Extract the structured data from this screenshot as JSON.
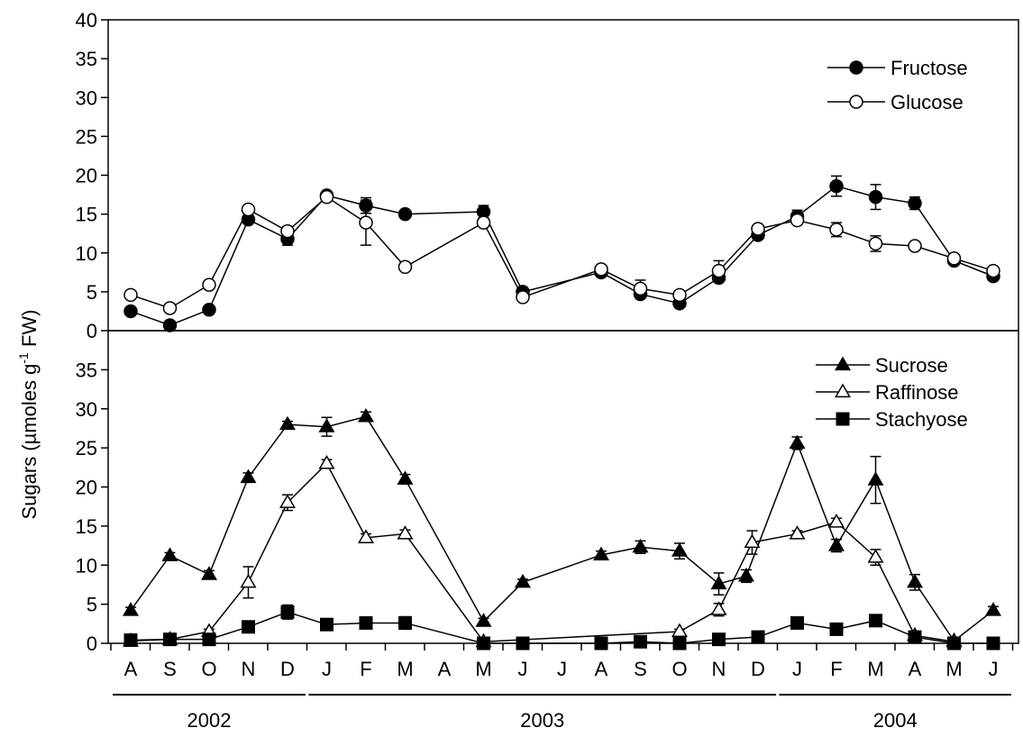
{
  "chart_data": [
    {
      "type": "line",
      "panel": "top",
      "ylim": [
        0,
        40
      ],
      "yticks": [
        0,
        5,
        10,
        15,
        20,
        25,
        30,
        35,
        40
      ],
      "legend_position": "top-right",
      "series": [
        {
          "name": "Fructose",
          "marker": "circle-filled",
          "points": [
            {
              "x": 0,
              "y": 2.5,
              "err": 0.3
            },
            {
              "x": 2,
              "y": 0.7,
              "err": 0.2
            },
            {
              "x": 4,
              "y": 2.7,
              "err": 0.3
            },
            {
              "x": 6,
              "y": 14.3,
              "err": 0.5
            },
            {
              "x": 8,
              "y": 11.8,
              "err": 0.8
            },
            {
              "x": 10,
              "y": 17.4,
              "err": 0.3
            },
            {
              "x": 12,
              "y": 16.1,
              "err": 1.0
            },
            {
              "x": 14,
              "y": 15.0,
              "err": 0.3
            },
            {
              "x": 18,
              "y": 15.3,
              "err": 0.8
            },
            {
              "x": 20,
              "y": 5.0,
              "err": 0.3
            },
            {
              "x": 24,
              "y": 7.5,
              "err": 0.3
            },
            {
              "x": 26,
              "y": 4.7,
              "err": 0.3
            },
            {
              "x": 28,
              "y": 3.5,
              "err": 0.3
            },
            {
              "x": 30,
              "y": 6.8,
              "err": 0.5
            },
            {
              "x": 32,
              "y": 12.3,
              "err": 0.5
            },
            {
              "x": 34,
              "y": 14.7,
              "err": 0.8
            },
            {
              "x": 36,
              "y": 18.6,
              "err": 1.3
            },
            {
              "x": 38,
              "y": 17.2,
              "err": 1.6
            },
            {
              "x": 40,
              "y": 16.4,
              "err": 0.8
            },
            {
              "x": 42,
              "y": 9.0,
              "err": 0.3
            },
            {
              "x": 44,
              "y": 7.0,
              "err": 0.5
            }
          ]
        },
        {
          "name": "Glucose",
          "marker": "circle-open",
          "points": [
            {
              "x": 0,
              "y": 4.6,
              "err": 0.3
            },
            {
              "x": 2,
              "y": 2.9,
              "err": 0.3
            },
            {
              "x": 4,
              "y": 5.9,
              "err": 0.3
            },
            {
              "x": 6,
              "y": 15.6,
              "err": 0.4
            },
            {
              "x": 8,
              "y": 12.8,
              "err": 0.6
            },
            {
              "x": 10,
              "y": 17.2,
              "err": 0.3
            },
            {
              "x": 12,
              "y": 13.9,
              "err": 2.9
            },
            {
              "x": 14,
              "y": 8.2,
              "err": 0.3
            },
            {
              "x": 18,
              "y": 13.9,
              "err": 0.5
            },
            {
              "x": 20,
              "y": 4.3,
              "err": 0.3
            },
            {
              "x": 24,
              "y": 7.9,
              "err": 0.3
            },
            {
              "x": 26,
              "y": 5.4,
              "err": 1.1
            },
            {
              "x": 28,
              "y": 4.6,
              "err": 0.3
            },
            {
              "x": 30,
              "y": 7.7,
              "err": 1.3
            },
            {
              "x": 32,
              "y": 13.1,
              "err": 0.4
            },
            {
              "x": 34,
              "y": 14.2,
              "err": 0.4
            },
            {
              "x": 36,
              "y": 13.0,
              "err": 0.9
            },
            {
              "x": 38,
              "y": 11.2,
              "err": 1.0
            },
            {
              "x": 40,
              "y": 10.9,
              "err": 0.4
            },
            {
              "x": 42,
              "y": 9.3,
              "err": 0.3
            },
            {
              "x": 44,
              "y": 7.7,
              "err": 0.3
            }
          ]
        }
      ]
    },
    {
      "type": "line",
      "panel": "bottom",
      "ylim": [
        0,
        40
      ],
      "yticks": [
        0,
        5,
        10,
        15,
        20,
        25,
        30,
        35
      ],
      "legend_position": "top-right",
      "series": [
        {
          "name": "Sucrose",
          "marker": "triangle-filled",
          "points": [
            {
              "x": 0,
              "y": 4.2,
              "err": 0.4
            },
            {
              "x": 2,
              "y": 11.2,
              "err": 0.4
            },
            {
              "x": 4,
              "y": 8.8,
              "err": 0.5
            },
            {
              "x": 6,
              "y": 21.2,
              "err": 0.6
            },
            {
              "x": 8,
              "y": 28.0,
              "err": 0.4
            },
            {
              "x": 10,
              "y": 27.7,
              "err": 1.2
            },
            {
              "x": 12,
              "y": 29.0,
              "err": 0.6
            },
            {
              "x": 14,
              "y": 21.0,
              "err": 0.6
            },
            {
              "x": 18,
              "y": 2.8,
              "err": 0.4
            },
            {
              "x": 20,
              "y": 7.8,
              "err": 0.4
            },
            {
              "x": 24,
              "y": 11.3,
              "err": 0.5
            },
            {
              "x": 26,
              "y": 12.3,
              "err": 0.8
            },
            {
              "x": 28,
              "y": 11.8,
              "err": 1.0
            },
            {
              "x": 30,
              "y": 7.6,
              "err": 1.4
            },
            {
              "x": 31.4,
              "y": 8.6,
              "err": 0.8
            },
            {
              "x": 34,
              "y": 25.6,
              "err": 0.8
            },
            {
              "x": 36,
              "y": 12.5,
              "err": 0.8
            },
            {
              "x": 38,
              "y": 20.9,
              "err": 3.0
            },
            {
              "x": 40,
              "y": 7.8,
              "err": 1.0
            },
            {
              "x": 42,
              "y": 0.3,
              "err": 0.2
            },
            {
              "x": 44,
              "y": 4.2,
              "err": 0.5
            }
          ]
        },
        {
          "name": "Raffinose",
          "marker": "triangle-open",
          "points": [
            {
              "x": 0,
              "y": 0.3,
              "err": 0.1
            },
            {
              "x": 2,
              "y": 0.5,
              "err": 0.1
            },
            {
              "x": 4,
              "y": 1.5,
              "err": 0.3
            },
            {
              "x": 6,
              "y": 7.8,
              "err": 2.0
            },
            {
              "x": 8,
              "y": 18.0,
              "err": 1.0
            },
            {
              "x": 10,
              "y": 23.0,
              "err": 0.5
            },
            {
              "x": 12,
              "y": 13.5,
              "err": 0.5
            },
            {
              "x": 14,
              "y": 14.0,
              "err": 0.5
            },
            {
              "x": 18,
              "y": 0.2,
              "err": 0.1
            },
            {
              "x": 28,
              "y": 1.5,
              "err": 0.3
            },
            {
              "x": 30,
              "y": 4.3,
              "err": 0.8
            },
            {
              "x": 31.7,
              "y": 12.9,
              "err": 1.5
            },
            {
              "x": 34,
              "y": 14.0,
              "err": 0.4
            },
            {
              "x": 36,
              "y": 15.5,
              "err": 0.5
            },
            {
              "x": 38,
              "y": 11.0,
              "err": 1.0
            },
            {
              "x": 40,
              "y": 1.0,
              "err": 0.2
            },
            {
              "x": 42,
              "y": 0.2,
              "err": 0.1
            }
          ]
        },
        {
          "name": "Stachyose",
          "marker": "square-filled",
          "points": [
            {
              "x": 0,
              "y": 0.4,
              "err": 0.1
            },
            {
              "x": 2,
              "y": 0.5,
              "err": 0.1
            },
            {
              "x": 4,
              "y": 0.5,
              "err": 0.1
            },
            {
              "x": 6,
              "y": 2.1,
              "err": 0.3
            },
            {
              "x": 8,
              "y": 4.0,
              "err": 0.9
            },
            {
              "x": 10,
              "y": 2.4,
              "err": 0.3
            },
            {
              "x": 12,
              "y": 2.6,
              "err": 0.5
            },
            {
              "x": 14,
              "y": 2.6,
              "err": 0.8
            },
            {
              "x": 18,
              "y": 0.0,
              "err": 0.1
            },
            {
              "x": 20,
              "y": 0.0,
              "err": 0.1
            },
            {
              "x": 24,
              "y": 0.0,
              "err": 0.1
            },
            {
              "x": 26,
              "y": 0.2,
              "err": 0.1
            },
            {
              "x": 28,
              "y": 0.0,
              "err": 0.1
            },
            {
              "x": 30,
              "y": 0.5,
              "err": 0.1
            },
            {
              "x": 32,
              "y": 0.8,
              "err": 0.1
            },
            {
              "x": 34,
              "y": 2.6,
              "err": 0.3
            },
            {
              "x": 36,
              "y": 1.8,
              "err": 0.3
            },
            {
              "x": 38,
              "y": 2.9,
              "err": 0.4
            },
            {
              "x": 40,
              "y": 0.8,
              "err": 0.2
            },
            {
              "x": 42,
              "y": 0.0,
              "err": 0.1
            },
            {
              "x": 44,
              "y": 0.0,
              "err": 0.1
            }
          ]
        }
      ]
    }
  ],
  "shared": {
    "ylabel_main": "Sugars (µmoles g",
    "ylabel_sup": "-1",
    "ylabel_tail": " FW)",
    "months": [
      "A",
      "S",
      "O",
      "N",
      "D",
      "J",
      "F",
      "M",
      "A",
      "M",
      "J",
      "J",
      "A",
      "S",
      "O",
      "N",
      "D",
      "J",
      "F",
      "M",
      "A",
      "M",
      "J"
    ],
    "years": [
      {
        "label": "2002",
        "from": 0,
        "to": 4
      },
      {
        "label": "2003",
        "from": 5,
        "to": 16
      },
      {
        "label": "2004",
        "from": 17,
        "to": 22
      }
    ]
  }
}
